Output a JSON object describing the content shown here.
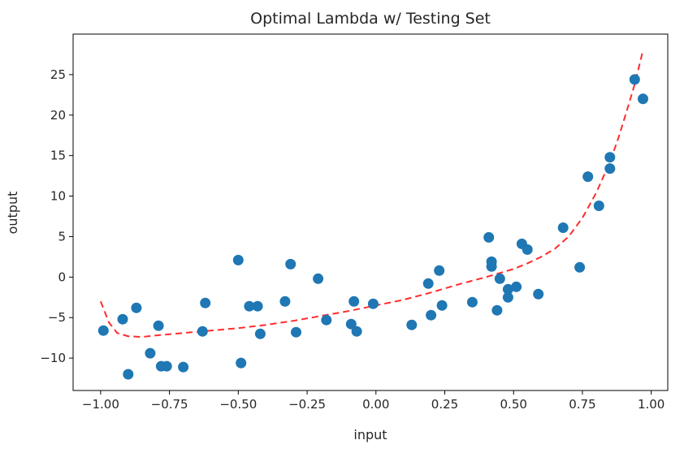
{
  "chart_data": {
    "type": "scatter",
    "title": "Optimal Lambda w/ Testing Set",
    "xlabel": "input",
    "ylabel": "output",
    "xlim": [
      -1.1,
      1.06
    ],
    "ylim": [
      -14,
      30
    ],
    "xticks": [
      -1.0,
      -0.75,
      -0.5,
      -0.25,
      0.0,
      0.25,
      0.5,
      0.75,
      1.0
    ],
    "xtick_labels": [
      "−1.00",
      "−0.75",
      "−0.50",
      "−0.25",
      "0.00",
      "0.25",
      "0.50",
      "0.75",
      "1.00"
    ],
    "yticks": [
      -10,
      -5,
      0,
      5,
      10,
      15,
      20,
      25
    ],
    "ytick_labels": [
      "−10",
      "−5",
      "0",
      "5",
      "10",
      "15",
      "20",
      "25"
    ],
    "grid": false,
    "series": [
      {
        "kind": "scatter",
        "color": "#1f77b4",
        "points": [
          [
            -0.99,
            -6.6
          ],
          [
            -0.92,
            -5.2
          ],
          [
            -0.9,
            -12.0
          ],
          [
            -0.87,
            -3.8
          ],
          [
            -0.82,
            -9.4
          ],
          [
            -0.79,
            -6.0
          ],
          [
            -0.78,
            -11.0
          ],
          [
            -0.76,
            -11.0
          ],
          [
            -0.7,
            -11.1
          ],
          [
            -0.63,
            -6.7
          ],
          [
            -0.62,
            -3.2
          ],
          [
            -0.5,
            2.1
          ],
          [
            -0.49,
            -10.6
          ],
          [
            -0.46,
            -3.6
          ],
          [
            -0.43,
            -3.6
          ],
          [
            -0.42,
            -7.0
          ],
          [
            -0.33,
            -3.0
          ],
          [
            -0.31,
            1.6
          ],
          [
            -0.29,
            -6.8
          ],
          [
            -0.21,
            -0.2
          ],
          [
            -0.18,
            -5.3
          ],
          [
            -0.09,
            -5.8
          ],
          [
            -0.08,
            -3.0
          ],
          [
            -0.07,
            -6.7
          ],
          [
            -0.01,
            -3.3
          ],
          [
            0.13,
            -5.9
          ],
          [
            0.19,
            -0.8
          ],
          [
            0.2,
            -4.7
          ],
          [
            0.23,
            0.8
          ],
          [
            0.24,
            -3.5
          ],
          [
            0.35,
            -3.1
          ],
          [
            0.41,
            4.9
          ],
          [
            0.42,
            1.9
          ],
          [
            0.42,
            1.3
          ],
          [
            0.44,
            -4.1
          ],
          [
            0.45,
            -0.2
          ],
          [
            0.48,
            -1.5
          ],
          [
            0.48,
            -2.5
          ],
          [
            0.51,
            -1.2
          ],
          [
            0.53,
            4.1
          ],
          [
            0.55,
            3.4
          ],
          [
            0.59,
            -2.1
          ],
          [
            0.68,
            6.1
          ],
          [
            0.74,
            1.2
          ],
          [
            0.77,
            12.4
          ],
          [
            0.81,
            8.8
          ],
          [
            0.85,
            14.8
          ],
          [
            0.85,
            13.4
          ],
          [
            0.94,
            24.4
          ],
          [
            0.97,
            22.0
          ]
        ]
      },
      {
        "kind": "line",
        "style": "dashed",
        "color": "#ff2c2c",
        "points": [
          [
            -1.0,
            -3.0
          ],
          [
            -0.97,
            -5.6
          ],
          [
            -0.94,
            -6.9
          ],
          [
            -0.9,
            -7.3
          ],
          [
            -0.85,
            -7.4
          ],
          [
            -0.8,
            -7.2
          ],
          [
            -0.7,
            -6.9
          ],
          [
            -0.6,
            -6.6
          ],
          [
            -0.5,
            -6.3
          ],
          [
            -0.4,
            -5.9
          ],
          [
            -0.3,
            -5.4
          ],
          [
            -0.2,
            -4.8
          ],
          [
            -0.1,
            -4.2
          ],
          [
            0.0,
            -3.5
          ],
          [
            0.1,
            -2.8
          ],
          [
            0.2,
            -1.9
          ],
          [
            0.3,
            -0.9
          ],
          [
            0.4,
            0.0
          ],
          [
            0.5,
            1.0
          ],
          [
            0.55,
            1.7
          ],
          [
            0.6,
            2.5
          ],
          [
            0.65,
            3.5
          ],
          [
            0.7,
            5.0
          ],
          [
            0.75,
            7.3
          ],
          [
            0.8,
            10.4
          ],
          [
            0.85,
            14.2
          ],
          [
            0.88,
            17.1
          ],
          [
            0.91,
            20.4
          ],
          [
            0.94,
            23.8
          ],
          [
            0.97,
            28.0
          ]
        ]
      }
    ]
  }
}
